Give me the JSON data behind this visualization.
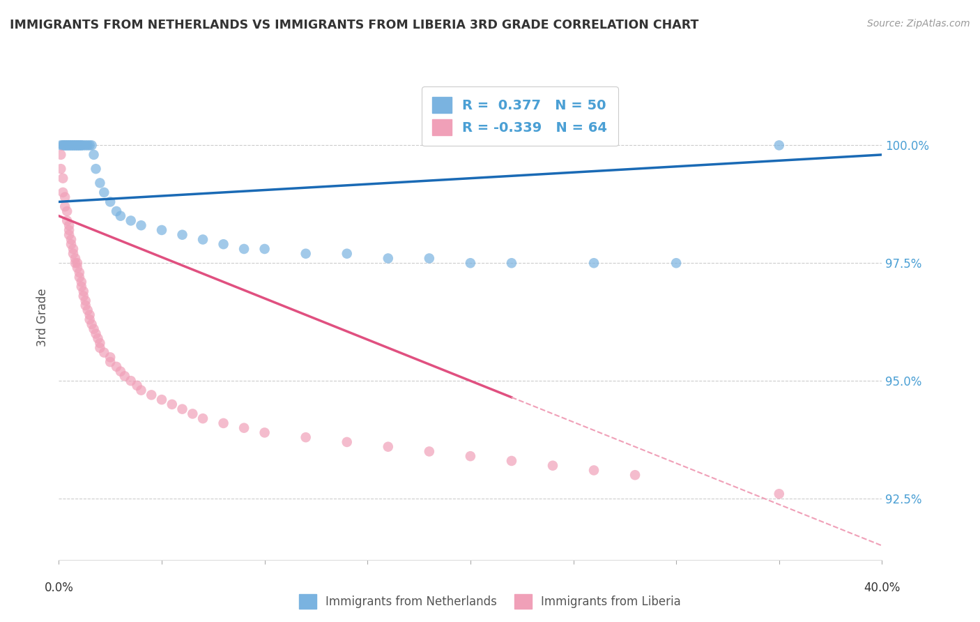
{
  "title": "IMMIGRANTS FROM NETHERLANDS VS IMMIGRANTS FROM LIBERIA 3RD GRADE CORRELATION CHART",
  "source": "Source: ZipAtlas.com",
  "ylabel": "3rd Grade",
  "y_ticks": [
    92.5,
    95.0,
    97.5,
    100.0
  ],
  "y_tick_labels": [
    "92.5%",
    "95.0%",
    "97.5%",
    "100.0%"
  ],
  "x_range": [
    0.0,
    0.4
  ],
  "y_range": [
    91.2,
    101.5
  ],
  "netherlands_R": 0.377,
  "netherlands_N": 50,
  "liberia_R": -0.339,
  "liberia_N": 64,
  "netherlands_color": "#7ab3e0",
  "liberia_color": "#f0a0b8",
  "netherlands_line_color": "#1a6ab5",
  "liberia_line_color": "#e05080",
  "dashed_line_color": "#f0a0b8",
  "netherlands_x": [
    0.001,
    0.002,
    0.002,
    0.003,
    0.003,
    0.004,
    0.004,
    0.005,
    0.005,
    0.006,
    0.006,
    0.007,
    0.007,
    0.008,
    0.008,
    0.009,
    0.009,
    0.01,
    0.01,
    0.011,
    0.011,
    0.012,
    0.013,
    0.014,
    0.015,
    0.016,
    0.017,
    0.018,
    0.02,
    0.022,
    0.025,
    0.028,
    0.03,
    0.035,
    0.04,
    0.05,
    0.06,
    0.07,
    0.08,
    0.09,
    0.1,
    0.12,
    0.14,
    0.16,
    0.18,
    0.2,
    0.22,
    0.26,
    0.3,
    0.35
  ],
  "netherlands_y": [
    100.0,
    100.0,
    100.0,
    100.0,
    100.0,
    100.0,
    100.0,
    100.0,
    100.0,
    100.0,
    100.0,
    100.0,
    100.0,
    100.0,
    100.0,
    100.0,
    100.0,
    100.0,
    100.0,
    100.0,
    100.0,
    100.0,
    100.0,
    100.0,
    100.0,
    100.0,
    99.8,
    99.5,
    99.2,
    99.0,
    98.8,
    98.6,
    98.5,
    98.4,
    98.3,
    98.2,
    98.1,
    98.0,
    97.9,
    97.8,
    97.8,
    97.7,
    97.7,
    97.6,
    97.6,
    97.5,
    97.5,
    97.5,
    97.5,
    100.0
  ],
  "liberia_x": [
    0.001,
    0.001,
    0.002,
    0.002,
    0.003,
    0.003,
    0.004,
    0.004,
    0.005,
    0.005,
    0.005,
    0.006,
    0.006,
    0.007,
    0.007,
    0.008,
    0.008,
    0.009,
    0.009,
    0.01,
    0.01,
    0.011,
    0.011,
    0.012,
    0.012,
    0.013,
    0.013,
    0.014,
    0.015,
    0.015,
    0.016,
    0.017,
    0.018,
    0.019,
    0.02,
    0.02,
    0.022,
    0.025,
    0.025,
    0.028,
    0.03,
    0.032,
    0.035,
    0.038,
    0.04,
    0.045,
    0.05,
    0.055,
    0.06,
    0.065,
    0.07,
    0.08,
    0.09,
    0.1,
    0.12,
    0.14,
    0.16,
    0.18,
    0.2,
    0.22,
    0.24,
    0.26,
    0.28,
    0.35
  ],
  "liberia_y": [
    99.8,
    99.5,
    99.3,
    99.0,
    98.9,
    98.7,
    98.6,
    98.4,
    98.3,
    98.2,
    98.1,
    98.0,
    97.9,
    97.8,
    97.7,
    97.6,
    97.5,
    97.5,
    97.4,
    97.3,
    97.2,
    97.1,
    97.0,
    96.9,
    96.8,
    96.7,
    96.6,
    96.5,
    96.4,
    96.3,
    96.2,
    96.1,
    96.0,
    95.9,
    95.8,
    95.7,
    95.6,
    95.5,
    95.4,
    95.3,
    95.2,
    95.1,
    95.0,
    94.9,
    94.8,
    94.7,
    94.6,
    94.5,
    94.4,
    94.3,
    94.2,
    94.1,
    94.0,
    93.9,
    93.8,
    93.7,
    93.6,
    93.5,
    93.4,
    93.3,
    93.2,
    93.1,
    93.0,
    92.6
  ],
  "nl_line_x0": 0.0,
  "nl_line_y0": 98.8,
  "nl_line_x1": 0.4,
  "nl_line_y1": 99.8,
  "lb_line_x0": 0.0,
  "lb_line_y0": 98.5,
  "lb_line_x1": 0.4,
  "lb_line_y1": 91.5,
  "lb_solid_cutoff": 0.22
}
